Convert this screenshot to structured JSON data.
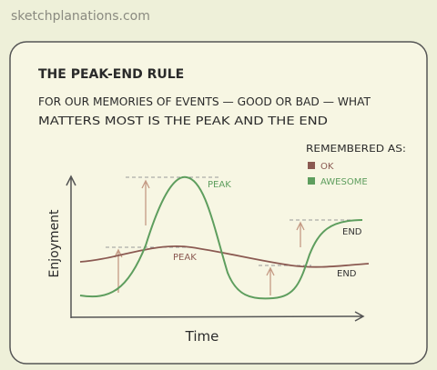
{
  "site": "sketchplanations.com",
  "title": "THE PEAK-END RULE",
  "subtitle": [
    "FOR OUR MEMORIES OF EVENTS — GOOD OR BAD — WHAT",
    "MATTERS MOST IS THE PEAK AND THE END"
  ],
  "legend": {
    "title": "REMEMBERED AS:",
    "items": [
      "OK",
      "AWESOME"
    ]
  },
  "axes": {
    "y": "Enjoyment",
    "x": "Time"
  },
  "annotations": {
    "awesome_peak": "PEAK",
    "awesome_end": "END",
    "ok_peak": "PEAK",
    "ok_end": "END"
  }
}
